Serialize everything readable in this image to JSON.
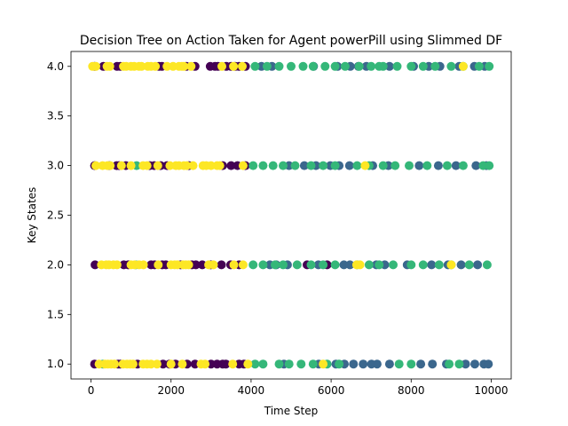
{
  "chart_data": {
    "type": "scatter",
    "title": "Decision Tree on Action Taken for Agent powerPill using Slimmed DF",
    "xlabel": "Time Step",
    "ylabel": "Key States",
    "xlim": [
      -500,
      10500
    ],
    "ylim": [
      0.85,
      4.15
    ],
    "x_ticks": [
      0,
      2000,
      4000,
      6000,
      8000,
      10000
    ],
    "x_tick_labels": [
      "0",
      "2000",
      "4000",
      "6000",
      "8000",
      "10000"
    ],
    "y_ticks": [
      1.0,
      1.5,
      2.0,
      2.5,
      3.0,
      3.5,
      4.0
    ],
    "y_tick_labels": [
      "1.0",
      "1.5",
      "2.0",
      "2.5",
      "3.0",
      "3.5",
      "4.0"
    ],
    "grid": false,
    "legend": "none",
    "colormap": "viridis",
    "series": [
      {
        "color": "#440154",
        "points": [
          [
            90,
            4
          ],
          [
            310,
            4
          ],
          [
            650,
            4
          ],
          [
            730,
            4
          ],
          [
            1700,
            4
          ],
          [
            1770,
            4
          ],
          [
            2380,
            4
          ],
          [
            2600,
            4
          ],
          [
            2980,
            4
          ],
          [
            3100,
            4
          ],
          [
            3170,
            4
          ],
          [
            3380,
            4
          ],
          [
            3500,
            4
          ],
          [
            3600,
            4
          ],
          [
            3700,
            4
          ],
          [
            3860,
            4
          ],
          [
            90,
            3
          ],
          [
            460,
            3
          ],
          [
            640,
            3
          ],
          [
            700,
            3
          ],
          [
            870,
            3
          ],
          [
            1470,
            3
          ],
          [
            1580,
            3
          ],
          [
            1740,
            3
          ],
          [
            1900,
            3
          ],
          [
            2450,
            3
          ],
          [
            3290,
            3
          ],
          [
            3500,
            3
          ],
          [
            3660,
            3
          ],
          [
            3860,
            3
          ],
          [
            100,
            2
          ],
          [
            820,
            2
          ],
          [
            930,
            2
          ],
          [
            1500,
            2
          ],
          [
            1590,
            2
          ],
          [
            1780,
            2
          ],
          [
            1870,
            2
          ],
          [
            2240,
            2
          ],
          [
            2520,
            2
          ],
          [
            2620,
            2
          ],
          [
            2780,
            2
          ],
          [
            2990,
            2
          ],
          [
            3260,
            2
          ],
          [
            3490,
            2
          ],
          [
            3700,
            2
          ],
          [
            5400,
            2
          ],
          [
            5900,
            2
          ],
          [
            90,
            1
          ],
          [
            680,
            1
          ],
          [
            730,
            1
          ],
          [
            1160,
            1
          ],
          [
            1800,
            1
          ],
          [
            1960,
            1
          ],
          [
            2110,
            1
          ],
          [
            2400,
            1
          ],
          [
            2600,
            1
          ],
          [
            3000,
            1
          ],
          [
            3150,
            1
          ],
          [
            3290,
            1
          ],
          [
            3370,
            1
          ],
          [
            3700,
            1
          ],
          [
            3820,
            1
          ]
        ]
      },
      {
        "color": "#3b678d",
        "points": [
          [
            4260,
            4
          ],
          [
            4520,
            4
          ],
          [
            5560,
            4
          ],
          [
            6160,
            4
          ],
          [
            6480,
            4
          ],
          [
            6680,
            4
          ],
          [
            6880,
            4
          ],
          [
            7460,
            4
          ],
          [
            8060,
            4
          ],
          [
            8440,
            4
          ],
          [
            8720,
            4
          ],
          [
            9200,
            4
          ],
          [
            9580,
            4
          ],
          [
            9840,
            4
          ],
          [
            4950,
            3
          ],
          [
            5330,
            3
          ],
          [
            5620,
            3
          ],
          [
            5980,
            3
          ],
          [
            6200,
            3
          ],
          [
            6460,
            3
          ],
          [
            7040,
            3
          ],
          [
            7430,
            3
          ],
          [
            8200,
            3
          ],
          [
            8680,
            3
          ],
          [
            9120,
            3
          ],
          [
            9620,
            3
          ],
          [
            9880,
            3
          ],
          [
            4470,
            2
          ],
          [
            4630,
            2
          ],
          [
            4910,
            2
          ],
          [
            5680,
            2
          ],
          [
            6320,
            2
          ],
          [
            6470,
            2
          ],
          [
            7130,
            2
          ],
          [
            7340,
            2
          ],
          [
            7900,
            2
          ],
          [
            8510,
            2
          ],
          [
            8920,
            2
          ],
          [
            9250,
            2
          ],
          [
            9660,
            2
          ],
          [
            4820,
            1
          ],
          [
            5690,
            1
          ],
          [
            6120,
            1
          ],
          [
            6330,
            1
          ],
          [
            6560,
            1
          ],
          [
            6800,
            1
          ],
          [
            7010,
            1
          ],
          [
            7150,
            1
          ],
          [
            7460,
            1
          ],
          [
            8240,
            1
          ],
          [
            8530,
            1
          ],
          [
            8880,
            1
          ],
          [
            9360,
            1
          ],
          [
            9590,
            1
          ],
          [
            9820,
            1
          ],
          [
            9930,
            1
          ]
        ]
      },
      {
        "color": "#35b779",
        "points": [
          [
            4100,
            4
          ],
          [
            4400,
            4
          ],
          [
            4700,
            4
          ],
          [
            5000,
            4
          ],
          [
            5300,
            4
          ],
          [
            5550,
            4
          ],
          [
            5850,
            4
          ],
          [
            6100,
            4
          ],
          [
            6350,
            4
          ],
          [
            6700,
            4
          ],
          [
            7000,
            4
          ],
          [
            7200,
            4
          ],
          [
            7300,
            4
          ],
          [
            7650,
            4
          ],
          [
            8000,
            4
          ],
          [
            8300,
            4
          ],
          [
            8600,
            4
          ],
          [
            9000,
            4
          ],
          [
            9300,
            4
          ],
          [
            9700,
            4
          ],
          [
            9950,
            4
          ],
          [
            1140,
            3
          ],
          [
            4050,
            3
          ],
          [
            4300,
            3
          ],
          [
            4550,
            3
          ],
          [
            4800,
            3
          ],
          [
            5100,
            3
          ],
          [
            5500,
            3
          ],
          [
            5800,
            3
          ],
          [
            6100,
            3
          ],
          [
            6650,
            3
          ],
          [
            6950,
            3
          ],
          [
            7300,
            3
          ],
          [
            7600,
            3
          ],
          [
            7950,
            3
          ],
          [
            8400,
            3
          ],
          [
            8900,
            3
          ],
          [
            9300,
            3
          ],
          [
            9800,
            3
          ],
          [
            9950,
            3
          ],
          [
            1120,
            2
          ],
          [
            4050,
            2
          ],
          [
            4300,
            2
          ],
          [
            4600,
            2
          ],
          [
            4800,
            2
          ],
          [
            5150,
            2
          ],
          [
            5500,
            2
          ],
          [
            5800,
            2
          ],
          [
            6100,
            2
          ],
          [
            6650,
            2
          ],
          [
            6950,
            2
          ],
          [
            7200,
            2
          ],
          [
            7550,
            2
          ],
          [
            8000,
            2
          ],
          [
            8300,
            2
          ],
          [
            8700,
            2
          ],
          [
            9000,
            2
          ],
          [
            9450,
            2
          ],
          [
            9900,
            2
          ],
          [
            300,
            1
          ],
          [
            4100,
            1
          ],
          [
            4300,
            1
          ],
          [
            4700,
            1
          ],
          [
            4950,
            1
          ],
          [
            5250,
            1
          ],
          [
            5550,
            1
          ],
          [
            5900,
            1
          ],
          [
            6200,
            1
          ],
          [
            7700,
            1
          ],
          [
            8000,
            1
          ],
          [
            8950,
            1
          ],
          [
            9200,
            1
          ]
        ]
      },
      {
        "color": "#fde725",
        "points": [
          [
            40,
            4
          ],
          [
            120,
            4
          ],
          [
            400,
            4
          ],
          [
            470,
            4
          ],
          [
            810,
            4
          ],
          [
            880,
            4
          ],
          [
            1000,
            4
          ],
          [
            1080,
            4
          ],
          [
            1200,
            4
          ],
          [
            1260,
            4
          ],
          [
            1420,
            4
          ],
          [
            1500,
            4
          ],
          [
            1610,
            4
          ],
          [
            1900,
            4
          ],
          [
            2050,
            4
          ],
          [
            2200,
            4
          ],
          [
            2270,
            4
          ],
          [
            2320,
            4
          ],
          [
            2500,
            4
          ],
          [
            3270,
            4
          ],
          [
            3560,
            4
          ],
          [
            3780,
            4
          ],
          [
            9300,
            4
          ],
          [
            120,
            3
          ],
          [
            290,
            3
          ],
          [
            410,
            3
          ],
          [
            480,
            3
          ],
          [
            760,
            3
          ],
          [
            1000,
            3
          ],
          [
            1300,
            3
          ],
          [
            1400,
            3
          ],
          [
            1670,
            3
          ],
          [
            1970,
            3
          ],
          [
            2120,
            3
          ],
          [
            2200,
            3
          ],
          [
            2320,
            3
          ],
          [
            2390,
            3
          ],
          [
            2550,
            3
          ],
          [
            2800,
            3
          ],
          [
            2880,
            3
          ],
          [
            3000,
            3
          ],
          [
            3150,
            3
          ],
          [
            3220,
            3
          ],
          [
            3800,
            3
          ],
          [
            6850,
            3
          ],
          [
            260,
            2
          ],
          [
            380,
            2
          ],
          [
            450,
            2
          ],
          [
            560,
            2
          ],
          [
            650,
            2
          ],
          [
            1000,
            2
          ],
          [
            1090,
            2
          ],
          [
            1200,
            2
          ],
          [
            1310,
            2
          ],
          [
            1680,
            2
          ],
          [
            2000,
            2
          ],
          [
            2090,
            2
          ],
          [
            2160,
            2
          ],
          [
            2300,
            2
          ],
          [
            2370,
            2
          ],
          [
            2440,
            2
          ],
          [
            2940,
            2
          ],
          [
            3060,
            2
          ],
          [
            3570,
            2
          ],
          [
            3800,
            2
          ],
          [
            6640,
            2
          ],
          [
            6720,
            2
          ],
          [
            9000,
            2
          ],
          [
            200,
            1
          ],
          [
            350,
            1
          ],
          [
            420,
            1
          ],
          [
            500,
            1
          ],
          [
            590,
            1
          ],
          [
            800,
            1
          ],
          [
            900,
            1
          ],
          [
            980,
            1
          ],
          [
            1050,
            1
          ],
          [
            1300,
            1
          ],
          [
            1400,
            1
          ],
          [
            1500,
            1
          ],
          [
            1650,
            1
          ],
          [
            2000,
            1
          ],
          [
            2280,
            1
          ],
          [
            2750,
            1
          ],
          [
            2850,
            1
          ],
          [
            3540,
            1
          ],
          [
            3920,
            1
          ],
          [
            5800,
            1
          ]
        ]
      }
    ]
  }
}
